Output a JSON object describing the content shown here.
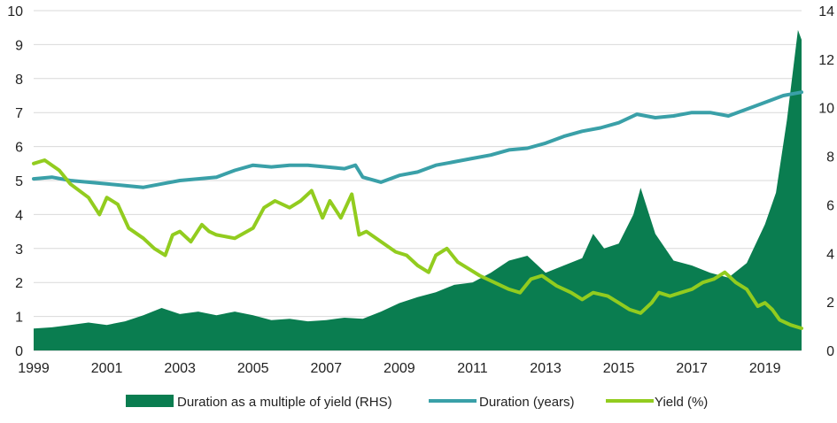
{
  "chart_data": {
    "type": "area+line",
    "title": "",
    "xlabel": "",
    "ylabel_left": "",
    "ylabel_right": "",
    "x_ticks": [
      "1999",
      "2001",
      "2003",
      "2005",
      "2007",
      "2009",
      "2011",
      "2013",
      "2015",
      "2017",
      "2019"
    ],
    "xlim": [
      1999,
      2020.0
    ],
    "ylim_left": [
      0,
      10
    ],
    "ylim_right": [
      0,
      14
    ],
    "y_ticks_left": [
      "0",
      "1",
      "2",
      "3",
      "4",
      "5",
      "6",
      "7",
      "8",
      "9",
      "10"
    ],
    "y_ticks_right": [
      "0",
      "2",
      "4",
      "6",
      "8",
      "10",
      "12",
      "14"
    ],
    "grid": true,
    "legend_position": "bottom",
    "series": [
      {
        "name": "Duration as a multiple of yield (RHS)",
        "kind": "area",
        "axis": "right",
        "color": "#0a7d50",
        "x": [
          1999.0,
          1999.5,
          2000.0,
          2000.5,
          2001.0,
          2001.5,
          2002.0,
          2002.5,
          2003.0,
          2003.5,
          2004.0,
          2004.5,
          2005.0,
          2005.5,
          2006.0,
          2006.5,
          2007.0,
          2007.5,
          2008.0,
          2008.5,
          2009.0,
          2009.5,
          2010.0,
          2010.5,
          2011.0,
          2011.5,
          2012.0,
          2012.5,
          2013.0,
          2013.5,
          2014.0,
          2014.3,
          2014.6,
          2015.0,
          2015.4,
          2015.6,
          2016.0,
          2016.5,
          2017.0,
          2017.5,
          2018.0,
          2018.5,
          2019.0,
          2019.3,
          2019.6,
          2019.9,
          2020.0
        ],
        "values": [
          0.9,
          0.95,
          1.05,
          1.15,
          1.05,
          1.2,
          1.45,
          1.75,
          1.5,
          1.6,
          1.45,
          1.6,
          1.45,
          1.25,
          1.3,
          1.2,
          1.25,
          1.35,
          1.3,
          1.6,
          1.95,
          2.2,
          2.4,
          2.7,
          2.8,
          3.2,
          3.7,
          3.9,
          3.2,
          3.5,
          3.8,
          4.8,
          4.2,
          4.4,
          5.6,
          6.7,
          4.8,
          3.7,
          3.5,
          3.2,
          3.0,
          3.6,
          5.2,
          6.5,
          9.5,
          13.2,
          12.8
        ]
      },
      {
        "name": "Duration (years)",
        "kind": "line",
        "axis": "left",
        "color": "#3aa0a8",
        "x": [
          1999.0,
          1999.5,
          2000.0,
          2000.5,
          2001.0,
          2001.5,
          2002.0,
          2002.5,
          2003.0,
          2003.5,
          2004.0,
          2004.5,
          2005.0,
          2005.5,
          2006.0,
          2006.5,
          2007.0,
          2007.5,
          2007.8,
          2008.0,
          2008.5,
          2009.0,
          2009.5,
          2010.0,
          2010.5,
          2011.0,
          2011.5,
          2012.0,
          2012.5,
          2013.0,
          2013.5,
          2014.0,
          2014.5,
          2015.0,
          2015.5,
          2016.0,
          2016.5,
          2017.0,
          2017.5,
          2018.0,
          2018.5,
          2019.0,
          2019.5,
          2020.0
        ],
        "values": [
          5.05,
          5.1,
          5.0,
          4.95,
          4.9,
          4.85,
          4.8,
          4.9,
          5.0,
          5.05,
          5.1,
          5.3,
          5.45,
          5.4,
          5.45,
          5.45,
          5.4,
          5.35,
          5.45,
          5.1,
          4.95,
          5.15,
          5.25,
          5.45,
          5.55,
          5.65,
          5.75,
          5.9,
          5.95,
          6.1,
          6.3,
          6.45,
          6.55,
          6.7,
          6.95,
          6.85,
          6.9,
          7.0,
          7.0,
          6.9,
          7.1,
          7.3,
          7.5,
          7.6
        ]
      },
      {
        "name": "Yield (%)",
        "kind": "line",
        "axis": "left",
        "color": "#92cc1f",
        "x": [
          1999.0,
          1999.3,
          1999.7,
          2000.0,
          2000.5,
          2000.8,
          2001.0,
          2001.3,
          2001.6,
          2002.0,
          2002.3,
          2002.6,
          2002.8,
          2003.0,
          2003.3,
          2003.6,
          2003.8,
          2004.0,
          2004.5,
          2005.0,
          2005.3,
          2005.6,
          2006.0,
          2006.3,
          2006.6,
          2006.9,
          2007.1,
          2007.4,
          2007.7,
          2007.9,
          2008.1,
          2008.5,
          2008.9,
          2009.2,
          2009.5,
          2009.8,
          2010.0,
          2010.3,
          2010.6,
          2010.9,
          2011.2,
          2011.6,
          2012.0,
          2012.3,
          2012.6,
          2012.9,
          2013.3,
          2013.7,
          2014.0,
          2014.3,
          2014.7,
          2015.0,
          2015.3,
          2015.6,
          2015.9,
          2016.1,
          2016.4,
          2016.7,
          2017.0,
          2017.3,
          2017.6,
          2017.9,
          2018.2,
          2018.5,
          2018.8,
          2019.0,
          2019.2,
          2019.4,
          2019.7,
          2020.0
        ],
        "values": [
          5.5,
          5.6,
          5.3,
          4.9,
          4.5,
          4.0,
          4.5,
          4.3,
          3.6,
          3.3,
          3.0,
          2.8,
          3.4,
          3.5,
          3.2,
          3.7,
          3.5,
          3.4,
          3.3,
          3.6,
          4.2,
          4.4,
          4.2,
          4.4,
          4.7,
          3.9,
          4.4,
          3.9,
          4.6,
          3.4,
          3.5,
          3.2,
          2.9,
          2.8,
          2.5,
          2.3,
          2.8,
          3.0,
          2.6,
          2.4,
          2.2,
          2.0,
          1.8,
          1.7,
          2.1,
          2.2,
          1.9,
          1.7,
          1.5,
          1.7,
          1.6,
          1.4,
          1.2,
          1.1,
          1.4,
          1.7,
          1.6,
          1.7,
          1.8,
          2.0,
          2.1,
          2.3,
          2.0,
          1.8,
          1.3,
          1.4,
          1.2,
          0.9,
          0.75,
          0.65
        ]
      }
    ]
  }
}
